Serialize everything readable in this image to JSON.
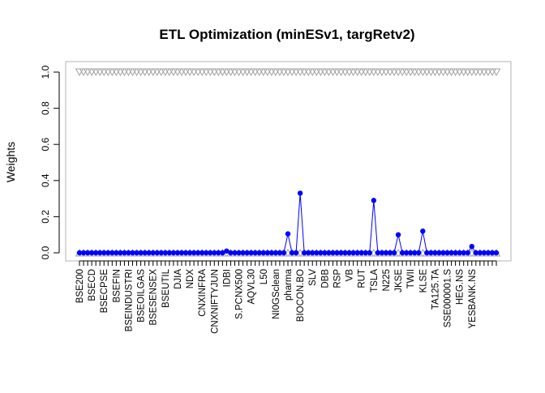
{
  "chart_data": {
    "type": "scatter",
    "title": "ETL Optimization (minESv1, targRetv2)",
    "xlabel": "",
    "ylabel": "Weights",
    "ylim": [
      0,
      1
    ],
    "yticks": [
      "0.0",
      "0.2",
      "0.4",
      "0.6",
      "0.8",
      "1.0"
    ],
    "n_assets": 103,
    "x_tick_labels": [
      "BSE200",
      "BSECD",
      "BSECPSE",
      "BSEFIN",
      "BSEINDUSTRI",
      "BSEOILGAS",
      "BSESENSEX",
      "BSEUTIL",
      "DJIA",
      "NDX",
      "CNXINFRA",
      "CNXNIFTYJUN",
      "IDBI",
      "S.PCNX500",
      "AQVL30",
      "L50",
      "NI0GSclean",
      "pharma",
      "BIOCON.BO",
      "SLV",
      "DBB",
      "RSP",
      "VB",
      "RUT",
      "TSLA",
      "N225",
      "JKSE",
      "TWII",
      "KLSE",
      "TA125.TA",
      "SSE000001.S",
      "HEG.NS",
      "YESBANK.NS"
    ],
    "series": [
      {
        "name": "",
        "marker": "filled-circle",
        "line": true,
        "color": "#0000ff",
        "nonzero_points": [
          {
            "asset": "IDBI",
            "weight": 0.01
          },
          {
            "asset": "pharma",
            "weight": 0.105
          },
          {
            "asset": "BIOCON.BO",
            "weight": 0.33
          },
          {
            "asset": "TSLA",
            "weight": 0.29
          },
          {
            "asset": "JKSE",
            "weight": 0.1
          },
          {
            "asset": "KLSE",
            "weight": 0.12
          },
          {
            "asset": "YESBANK.NS",
            "weight": 0.035
          }
        ],
        "default_weight": 0
      },
      {
        "name": "",
        "marker": "open-triangle-down",
        "line": false,
        "color": "#a0a0a0",
        "constant_weight": 1.0
      },
      {
        "name": "",
        "marker": "open-triangle-up",
        "line": false,
        "color": "#a0a0a0",
        "constant_weight": 0.0
      }
    ],
    "grid": false,
    "legend": "none"
  },
  "colors": {
    "weights": "#0000ff",
    "bounds": "#a0a0a0",
    "frame": "#b3b3b3",
    "text": "#000000"
  }
}
